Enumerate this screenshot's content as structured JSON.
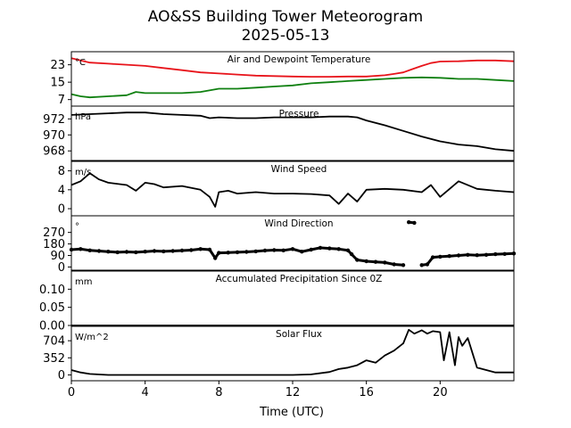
{
  "chart_data": {
    "type": "line",
    "title": "AO&SS Building Tower Meteorogram",
    "subtitle": "2025-05-13",
    "xlabel": "Time (UTC)",
    "xlim": [
      0,
      24
    ],
    "xticks": [
      0,
      4,
      8,
      12,
      16,
      20
    ],
    "panels": [
      {
        "id": "temperature",
        "title": "Air and Dewpoint Temperature",
        "unit": "°C",
        "ylim": [
          4,
          29
        ],
        "yticks": [
          7,
          15,
          23
        ],
        "series": [
          {
            "color": "#e8141b",
            "x": [
              0,
              0.5,
              1,
              2,
              3,
              4,
              5,
              6,
              7,
              8,
              9,
              10,
              11,
              12,
              13,
              14,
              15,
              16,
              17,
              17.5,
              18,
              18.5,
              19,
              19.5,
              20,
              21,
              22,
              23,
              24
            ],
            "y": [
              26,
              25,
              24,
              23.5,
              23,
              22.5,
              21.5,
              20.5,
              19.5,
              19,
              18.5,
              18,
              17.8,
              17.6,
              17.5,
              17.5,
              17.6,
              17.6,
              18.2,
              18.8,
              19.5,
              21,
              22.5,
              23.8,
              24.5,
              24.6,
              25,
              25,
              24.6
            ]
          },
          {
            "color": "#0f8010",
            "x": [
              0,
              0.5,
              1,
              2,
              3,
              3.5,
              4,
              5,
              6,
              7,
              8,
              9,
              10,
              11,
              12,
              13,
              14,
              15,
              16,
              17,
              18,
              19,
              20,
              21,
              22,
              23,
              24
            ],
            "y": [
              9.5,
              8.5,
              8,
              8.5,
              9,
              10.5,
              10,
              10,
              10,
              10.5,
              12,
              12,
              12.5,
              13,
              13.5,
              14.5,
              15,
              15.5,
              16,
              16.5,
              17,
              17.2,
              17,
              16.5,
              16.5,
              16,
              15.5
            ]
          }
        ]
      },
      {
        "id": "pressure",
        "title": "Pressure",
        "unit": "hPa",
        "ylim": [
          966.8,
          973.6
        ],
        "yticks": [
          968,
          970,
          972
        ],
        "series": [
          {
            "color": "#000000",
            "x": [
              0,
              1,
              2,
              3,
              4,
              5,
              6,
              7,
              7.5,
              8,
              9,
              10,
              11,
              12,
              13,
              14,
              15,
              15.5,
              16,
              17,
              18,
              19,
              20,
              21,
              22,
              23,
              24
            ],
            "y": [
              972.5,
              972.6,
              972.7,
              972.8,
              972.8,
              972.6,
              972.5,
              972.4,
              972.1,
              972.2,
              972.1,
              972.1,
              972.2,
              972.2,
              972.2,
              972.3,
              972.3,
              972.2,
              971.8,
              971.2,
              970.5,
              969.8,
              969.2,
              968.8,
              968.6,
              968.2,
              968
            ]
          }
        ]
      },
      {
        "id": "wind_speed",
        "title": "Wind Speed",
        "unit": "m/s",
        "ylim": [
          -1.5,
          10
        ],
        "yticks": [
          0,
          4,
          8
        ],
        "series": [
          {
            "color": "#000000",
            "x": [
              0,
              0.5,
              1,
              1.5,
              2,
              3,
              3.5,
              4,
              4.5,
              5,
              6,
              7,
              7.5,
              7.8,
              8,
              8.5,
              9,
              10,
              11,
              12,
              13,
              14,
              14.5,
              15,
              15.5,
              16,
              17,
              18,
              19,
              19.5,
              20,
              21,
              22,
              23,
              24
            ],
            "y": [
              5,
              5.8,
              7.5,
              6.2,
              5.5,
              5,
              3.8,
              5.5,
              5.2,
              4.5,
              4.8,
              4,
              2.5,
              0.4,
              3.5,
              3.8,
              3.2,
              3.5,
              3.2,
              3.2,
              3.1,
              2.8,
              1,
              3.2,
              1.5,
              4,
              4.2,
              4,
              3.5,
              5,
              2.5,
              5.8,
              4.2,
              3.8,
              3.5
            ]
          }
        ]
      },
      {
        "id": "wind_direction",
        "title": "Wind Direction",
        "unit": "°",
        "ylim": [
          -25,
          400
        ],
        "yticks": [
          0,
          90,
          180,
          270
        ],
        "series": [
          {
            "color": "#000000",
            "style": "dots",
            "x": [
              0,
              0.5,
              1,
              1.5,
              2,
              2.5,
              3,
              3.5,
              4,
              4.5,
              5,
              5.5,
              6,
              6.5,
              7,
              7.5,
              7.8,
              8,
              8.5,
              9,
              9.5,
              10,
              10.5,
              11,
              11.5,
              12,
              12.5,
              13,
              13.5,
              14,
              14.5,
              15,
              15.2,
              15.5,
              16,
              16.5,
              17,
              17.5,
              18,
              18.3,
              18.6,
              19,
              19.3,
              19.6,
              20,
              20.5,
              21,
              21.5,
              22,
              22.5,
              23,
              23.5,
              24
            ],
            "y": [
              135,
              140,
              130,
              125,
              120,
              115,
              118,
              115,
              120,
              125,
              122,
              125,
              128,
              132,
              140,
              135,
              70,
              110,
              112,
              115,
              118,
              122,
              128,
              132,
              130,
              140,
              120,
              135,
              150,
              145,
              140,
              130,
              100,
              55,
              45,
              40,
              35,
              20,
              15,
              350,
              345,
              15,
              20,
              75,
              80,
              85,
              90,
              95,
              92,
              95,
              100,
              102,
              105
            ]
          }
        ]
      },
      {
        "id": "precipitation",
        "title": "Accumulated Precipitation Since 0Z",
        "unit": "mm",
        "ylim": [
          0,
          0.15
        ],
        "yticks": [
          0.0,
          0.05,
          0.1
        ],
        "series": [
          {
            "color": "#000000",
            "x": [
              0,
              24
            ],
            "y": [
              0,
              0
            ]
          }
        ]
      },
      {
        "id": "solar",
        "title": "Solar Flux",
        "unit": "W/m^2",
        "ylim": [
          -120,
          1000
        ],
        "yticks": [
          0,
          352,
          704
        ],
        "series": [
          {
            "color": "#000000",
            "x": [
              0,
              0.5,
              1,
              2,
              4,
              6,
              8,
              10,
              12,
              13,
              14,
              14.5,
              15,
              15.5,
              16,
              16.5,
              17,
              17.5,
              18,
              18.3,
              18.6,
              19,
              19.3,
              19.6,
              20,
              20.2,
              20.5,
              20.8,
              21,
              21.2,
              21.5,
              22,
              23,
              24
            ],
            "y": [
              100,
              50,
              20,
              0,
              0,
              0,
              0,
              0,
              0,
              10,
              60,
              120,
              150,
              200,
              300,
              250,
              400,
              500,
              650,
              930,
              850,
              920,
              850,
              900,
              880,
              300,
              880,
              200,
              780,
              600,
              760,
              150,
              50,
              50
            ]
          }
        ]
      }
    ]
  }
}
